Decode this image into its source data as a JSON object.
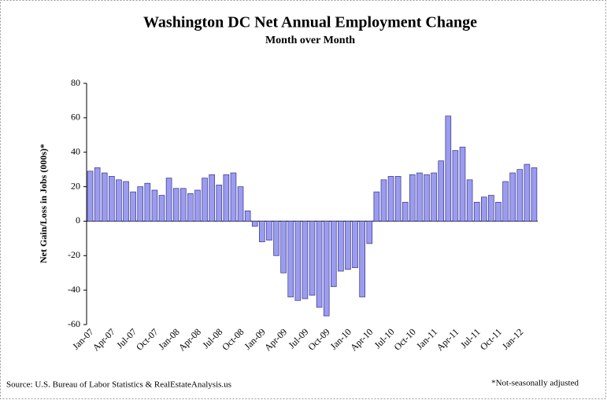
{
  "chart_data": {
    "type": "bar",
    "title": "Washington DC Net Annual Employment Change",
    "subtitle": "Month over Month",
    "y_label": "Net Gain/Loss in Jobs (000s)*",
    "source": "Source: U.S. Bureau of Labor Statistics & RealEstateAnalysis.us",
    "note": "*Not-seasonally adjusted",
    "categories": [
      "Jan-07",
      null,
      null,
      "Apr-07",
      null,
      null,
      "Jul-07",
      null,
      null,
      "Oct-07",
      null,
      null,
      "Jan-08",
      null,
      null,
      "Apr-08",
      null,
      null,
      "Jul-08",
      null,
      null,
      "Oct-08",
      null,
      null,
      "Jan-09",
      null,
      null,
      "Apr-09",
      null,
      null,
      "Jul-09",
      null,
      null,
      "Oct-09",
      null,
      null,
      "Jan-10",
      null,
      null,
      "Apr-10",
      null,
      null,
      "Jul-10",
      null,
      null,
      "Oct-10",
      null,
      null,
      "Jan-11",
      null,
      null,
      "Apr-11",
      null,
      null,
      "Jul-11",
      null,
      null,
      "Oct-11",
      null,
      null,
      "Jan-12",
      null,
      null
    ],
    "values": [
      29,
      31,
      28,
      26,
      24,
      23,
      17,
      20,
      22,
      18,
      15,
      25,
      19,
      19,
      16,
      18,
      25,
      27,
      21,
      27,
      28,
      20,
      6,
      -3,
      -12,
      -11,
      -20,
      -30,
      -44,
      -46,
      -45,
      -43,
      -50,
      -55,
      -38,
      -29,
      -28,
      -27,
      -44,
      -13,
      17,
      24,
      26,
      26,
      11,
      27,
      28,
      27,
      28,
      35,
      61,
      41,
      43,
      24,
      11,
      14,
      15,
      11,
      23,
      28,
      30,
      33,
      31
    ],
    "color": "#9b9bf0",
    "ylim": [
      -60,
      80
    ],
    "yticks": [
      -60,
      -40,
      -20,
      0,
      20,
      40,
      60,
      80
    ],
    "grid": false
  }
}
